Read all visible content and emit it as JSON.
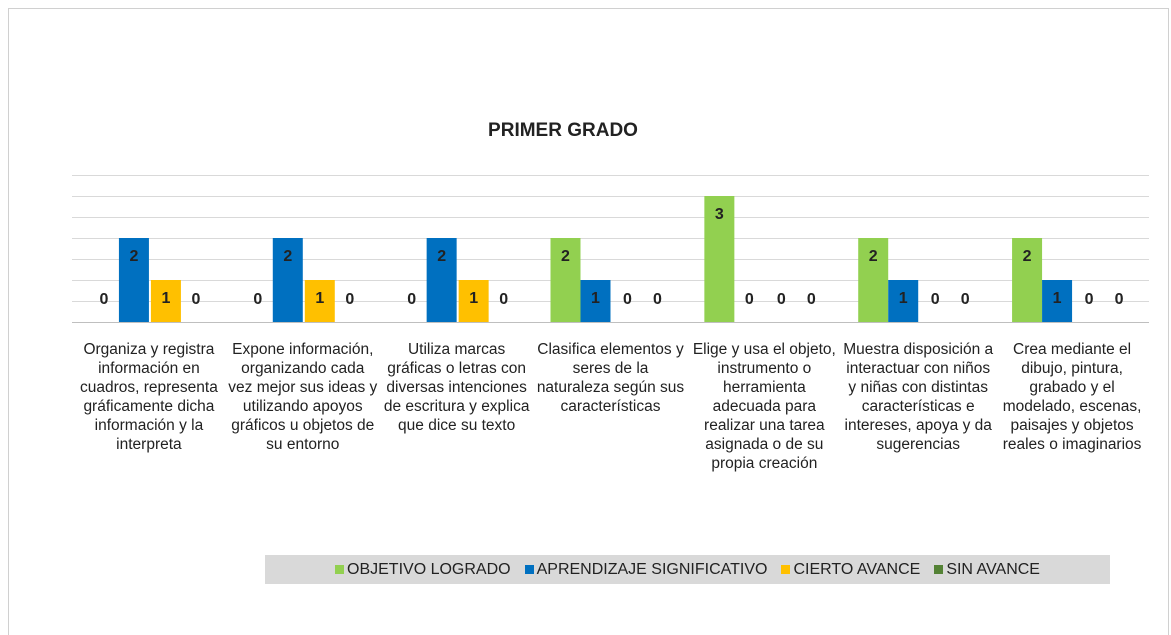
{
  "chart_data": {
    "type": "bar",
    "title": "PRIMER GRADO",
    "categories": [
      "Organiza y registra información en cuadros, representa gráficamente dicha información y la interpreta",
      "Expone información, organizando cada vez mejor sus ideas y utilizando apoyos gráficos u objetos de su entorno",
      "Utiliza marcas gráficas o letras con diversas intenciones de escritura y explica que dice su texto",
      "Clasifica elementos y seres de la naturaleza según sus características",
      "Elige y usa el objeto, instrumento o herramienta adecuada para realizar una tarea asignada o de su propia creación",
      "Muestra disposición a interactuar con niños y niñas con distintas características e intereses, apoya y da sugerencias",
      "Crea mediante el dibujo, pintura, grabado y el modelado, escenas, paisajes y objetos reales o imaginarios"
    ],
    "series": [
      {
        "name": "OBJETIVO LOGRADO",
        "color": "#92d050",
        "values": [
          0,
          0,
          0,
          2,
          3,
          2,
          2
        ]
      },
      {
        "name": "APRENDIZAJE SIGNIFICATIVO",
        "color": "#0070c0",
        "values": [
          2,
          2,
          2,
          1,
          0,
          1,
          1
        ]
      },
      {
        "name": "CIERTO AVANCE",
        "color": "#ffc000",
        "values": [
          1,
          1,
          1,
          0,
          0,
          0,
          0
        ]
      },
      {
        "name": "SIN AVANCE",
        "color": "#548235",
        "values": [
          0,
          0,
          0,
          0,
          0,
          0,
          0
        ]
      }
    ],
    "ylim": [
      0,
      3.5
    ],
    "yticks": [
      0,
      0.5,
      1,
      1.5,
      2,
      2.5,
      3,
      3.5
    ],
    "grid": true,
    "legend": "bottom"
  }
}
